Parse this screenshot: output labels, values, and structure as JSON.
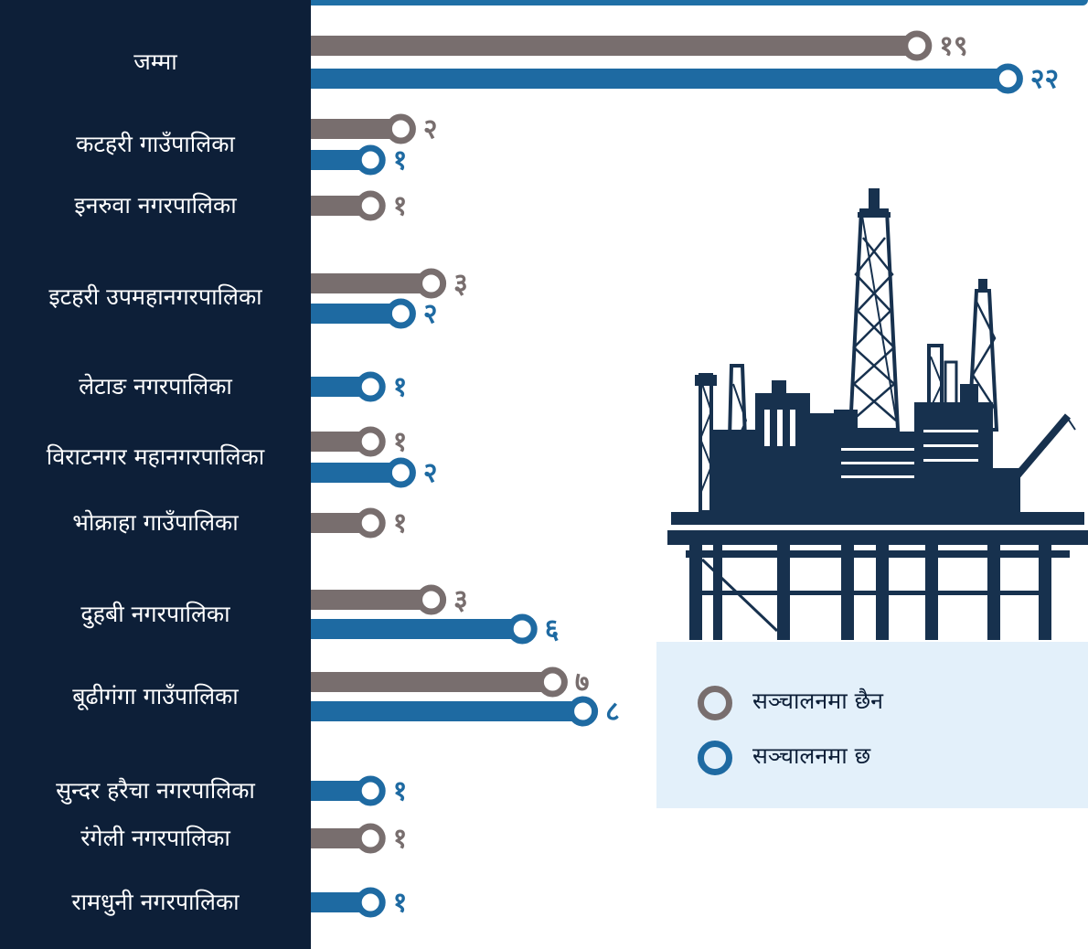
{
  "chart_data": {
    "type": "bar",
    "orientation": "horizontal",
    "title": "",
    "xlabel": "",
    "ylabel": "",
    "grid": false,
    "legend_position": "right",
    "categories": [
      "जम्मा",
      "कटहरी गाउँपालिका",
      "इनरुवा  नगरपालिका",
      "इटहरी उपमहानगरपालिका",
      "लेटाङ नगरपालिका",
      "विराटनगर महानगरपालिका",
      "भोक्राहा गाउँपालिका",
      "दुहबी नगरपालिका",
      "बूढीगंगा गाउँपालिका",
      "सुन्दर हरैचा नगरपालिका",
      "रंगेली नगरपालिका",
      "रामधुनी नगरपालिका"
    ],
    "series": [
      {
        "name": "सञ्चालनमा छैन",
        "values": [
          19,
          2,
          1,
          3,
          null,
          1,
          1,
          3,
          7,
          null,
          1,
          null
        ],
        "value_labels": [
          "१९",
          "२",
          "१",
          "३",
          "",
          "१",
          "१",
          "३",
          "७",
          "",
          "१",
          ""
        ]
      },
      {
        "name": "सञ्चालनमा छ",
        "values": [
          22,
          1,
          null,
          2,
          1,
          2,
          null,
          6,
          8,
          1,
          null,
          1
        ],
        "value_labels": [
          "२२",
          "१",
          "",
          "२",
          "१",
          "२",
          "",
          "६",
          "८",
          "१",
          "",
          "१"
        ]
      }
    ]
  },
  "colors": {
    "panel": "#0d1f38",
    "topbar": "#1f6fa6",
    "not_operating": "#786e6e",
    "operating": "#1e6aa2",
    "legend_bg": "#e3f0fa",
    "rig": "#17314e"
  },
  "illustration": {
    "icon": "oil-rig-icon"
  }
}
